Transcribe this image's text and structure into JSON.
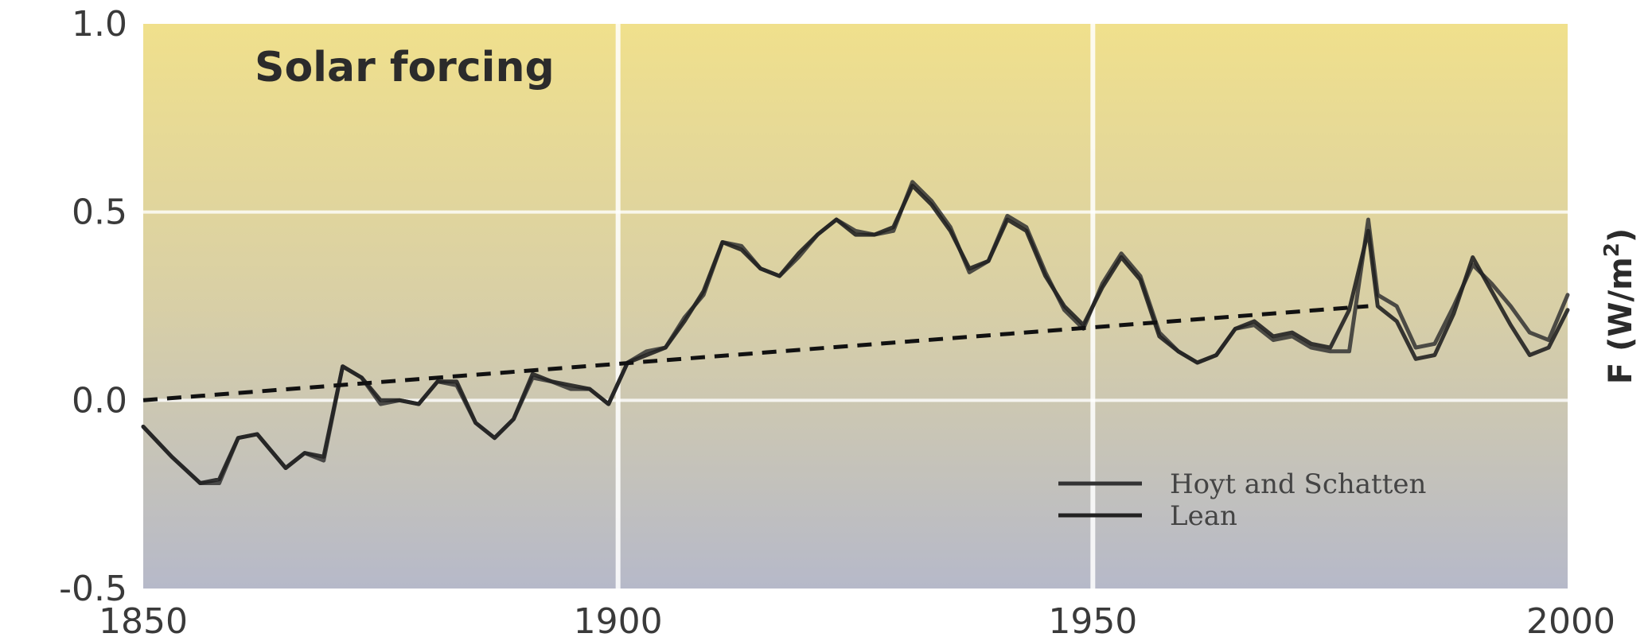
{
  "chart_data": {
    "type": "line",
    "title": "Solar forcing",
    "ylabel": "F (W/m²)",
    "ylabel_main": "F (W/m",
    "ylabel_sup": "2",
    "ylabel_close": ")",
    "xlim": [
      1850,
      2000
    ],
    "ylim": [
      -0.5,
      1.0
    ],
    "x_ticks": [
      1850,
      1900,
      1950,
      2000
    ],
    "y_ticks": [
      -0.5,
      0.0,
      0.5,
      1.0
    ],
    "x_tick_labels": [
      "1850",
      "1900",
      "1950",
      "2000"
    ],
    "y_tick_labels": [
      "-0.5",
      "0.0",
      "0.5",
      "1.0"
    ],
    "grid": true,
    "legend_position": "bottom-right",
    "background_gradient": [
      "#f0e08c",
      "#b6b9c9"
    ],
    "series": [
      {
        "name": "Hoyt and Schatten",
        "color": "#333333",
        "style": "solid",
        "x": [
          1850,
          1853,
          1856,
          1858,
          1860,
          1862,
          1865,
          1867,
          1869,
          1871,
          1873,
          1875,
          1877,
          1879,
          1881,
          1883,
          1885,
          1887,
          1889,
          1891,
          1893,
          1895,
          1897,
          1899,
          1901,
          1903,
          1905,
          1907,
          1909,
          1911,
          1913,
          1915,
          1917,
          1919,
          1921,
          1923,
          1925,
          1927,
          1929,
          1931,
          1933,
          1935,
          1937,
          1939,
          1941,
          1943,
          1945,
          1947,
          1949,
          1951,
          1953,
          1955,
          1957,
          1959,
          1961,
          1963,
          1965,
          1967,
          1969,
          1971,
          1973,
          1975,
          1977,
          1979,
          1980,
          1982,
          1984,
          1986,
          1988,
          1990,
          1992,
          1994,
          1996,
          1998,
          2000
        ],
        "y": [
          -0.07,
          -0.15,
          -0.22,
          -0.22,
          -0.1,
          -0.09,
          -0.18,
          -0.14,
          -0.16,
          0.09,
          0.06,
          -0.01,
          0.0,
          -0.01,
          0.05,
          0.04,
          -0.06,
          -0.1,
          -0.05,
          0.06,
          0.05,
          0.03,
          0.03,
          -0.01,
          0.1,
          0.13,
          0.14,
          0.22,
          0.28,
          0.42,
          0.41,
          0.35,
          0.33,
          0.38,
          0.44,
          0.48,
          0.45,
          0.44,
          0.45,
          0.58,
          0.53,
          0.46,
          0.34,
          0.37,
          0.49,
          0.46,
          0.34,
          0.24,
          0.19,
          0.31,
          0.39,
          0.33,
          0.18,
          0.13,
          0.1,
          0.12,
          0.19,
          0.2,
          0.16,
          0.17,
          0.14,
          0.13,
          0.13,
          0.48,
          0.28,
          0.25,
          0.14,
          0.15,
          0.25,
          0.36,
          0.31,
          0.25,
          0.18,
          0.16,
          0.28
        ]
      },
      {
        "name": "Lean",
        "color": "#222222",
        "style": "solid",
        "x": [
          1850,
          1853,
          1856,
          1858,
          1860,
          1862,
          1865,
          1867,
          1869,
          1871,
          1873,
          1875,
          1877,
          1879,
          1881,
          1883,
          1885,
          1887,
          1889,
          1891,
          1893,
          1895,
          1897,
          1899,
          1901,
          1903,
          1905,
          1907,
          1909,
          1911,
          1913,
          1915,
          1917,
          1919,
          1921,
          1923,
          1925,
          1927,
          1929,
          1931,
          1933,
          1935,
          1937,
          1939,
          1941,
          1943,
          1945,
          1947,
          1949,
          1951,
          1953,
          1955,
          1957,
          1959,
          1961,
          1963,
          1965,
          1967,
          1969,
          1971,
          1973,
          1975,
          1977,
          1979,
          1980,
          1982,
          1984,
          1986,
          1988,
          1990,
          1992,
          1994,
          1996,
          1998,
          2000
        ],
        "y": [
          -0.07,
          -0.15,
          -0.22,
          -0.21,
          -0.1,
          -0.09,
          -0.18,
          -0.14,
          -0.15,
          0.09,
          0.06,
          0.0,
          0.0,
          -0.01,
          0.05,
          0.05,
          -0.06,
          -0.1,
          -0.05,
          0.07,
          0.05,
          0.04,
          0.03,
          -0.01,
          0.1,
          0.12,
          0.14,
          0.21,
          0.29,
          0.42,
          0.4,
          0.35,
          0.33,
          0.39,
          0.44,
          0.48,
          0.44,
          0.44,
          0.46,
          0.57,
          0.52,
          0.45,
          0.35,
          0.37,
          0.48,
          0.45,
          0.33,
          0.25,
          0.2,
          0.3,
          0.38,
          0.32,
          0.17,
          0.13,
          0.1,
          0.12,
          0.19,
          0.21,
          0.17,
          0.18,
          0.15,
          0.14,
          0.24,
          0.45,
          0.25,
          0.21,
          0.11,
          0.12,
          0.23,
          0.38,
          0.29,
          0.2,
          0.12,
          0.14,
          0.24
        ]
      },
      {
        "name": "",
        "color": "#111111",
        "style": "dashed",
        "x": [
          1850,
          1979
        ],
        "y": [
          0.0,
          0.25
        ]
      }
    ]
  }
}
